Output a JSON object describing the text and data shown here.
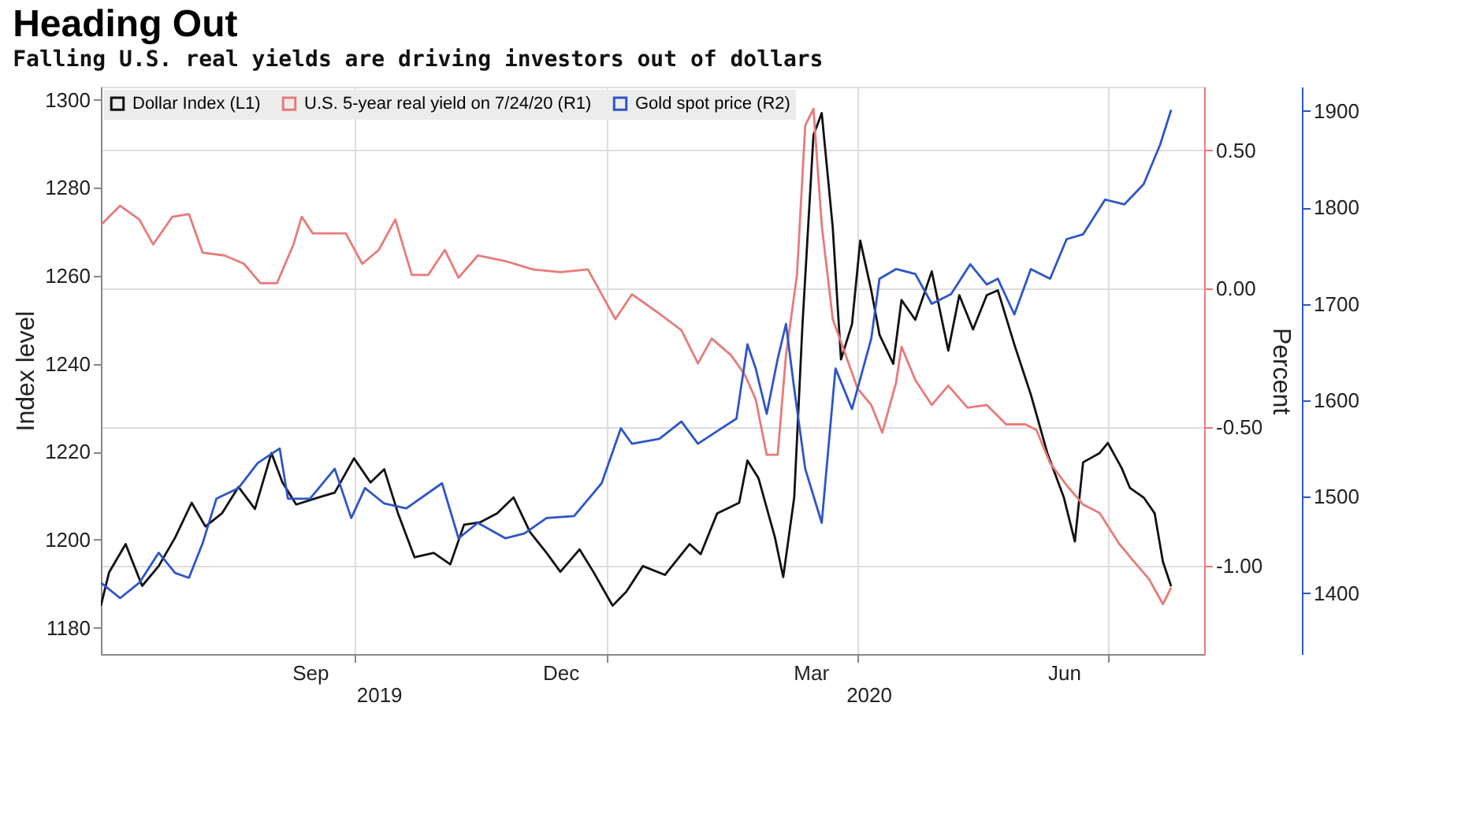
{
  "chart_data": {
    "type": "line",
    "title": "Heading Out",
    "subtitle": "Falling U.S. real yields are driving investors out of dollars",
    "ylabel": "Index level",
    "y2label": "Percent",
    "xlim": [
      "2019-07-01",
      "2020-08-05"
    ],
    "xticks": [
      {
        "value": "2019-09-15",
        "label": "Sep"
      },
      {
        "value": "2019-10-01",
        "label": null
      },
      {
        "value": "2019-12-15",
        "label": "Dec"
      },
      {
        "value": "2020-01-01",
        "label": null
      },
      {
        "value": "2020-03-15",
        "label": "Mar"
      },
      {
        "value": "2020-04-01",
        "label": null
      },
      {
        "value": "2020-06-15",
        "label": "Jun"
      },
      {
        "value": "2020-07-01",
        "label": null
      }
    ],
    "x2lim": [
      "2019-07-01",
      "2020-08-05"
    ],
    "x2ticks": [
      {
        "value": "2019-10-10",
        "label": "2019"
      },
      {
        "value": "2020-04-05",
        "label": "2020"
      }
    ],
    "ylim": [
      1174,
      1303
    ],
    "yticks": [
      1180,
      1200,
      1220,
      1240,
      1260,
      1280,
      1300
    ],
    "y2lim": [
      -1.32,
      0.73
    ],
    "y2ticks": [
      {
        "value": -1,
        "label": "-1.00"
      },
      {
        "value": -0.5,
        "label": "-0.50"
      },
      {
        "value": 0,
        "label": "0.00"
      },
      {
        "value": 0.5,
        "label": "0.50"
      }
    ],
    "y3lim": [
      1337,
      1925
    ],
    "y3ticks": [
      1400,
      1500,
      1600,
      1700,
      1800,
      1900
    ],
    "grid": true,
    "legend": "top left",
    "marker": "none",
    "line_style": "solid",
    "series": [
      {
        "name": "Dollar Index (L1)",
        "color": "#111111",
        "x": [
          "2019-07-01",
          "2019-07-04",
          "2019-07-10",
          "2019-07-16",
          "2019-07-22",
          "2019-07-28",
          "2019-08-03",
          "2019-08-08",
          "2019-08-14",
          "2019-08-20",
          "2019-08-26",
          "2019-09-01",
          "2019-09-05",
          "2019-09-10",
          "2019-09-18",
          "2019-09-24",
          "2019-10-01",
          "2019-10-07",
          "2019-10-12",
          "2019-10-17",
          "2019-10-23",
          "2019-10-30",
          "2019-11-05",
          "2019-11-10",
          "2019-11-16",
          "2019-11-22",
          "2019-11-28",
          "2019-12-04",
          "2019-12-10",
          "2019-12-15",
          "2019-12-22",
          "2019-12-27",
          "2020-01-03",
          "2020-01-08",
          "2020-01-14",
          "2020-01-22",
          "2020-01-31",
          "2020-02-04",
          "2020-02-10",
          "2020-02-18",
          "2020-02-21",
          "2020-02-25",
          "2020-03-02",
          "2020-03-05",
          "2020-03-09",
          "2020-03-12",
          "2020-03-16",
          "2020-03-19",
          "2020-03-23",
          "2020-03-26",
          "2020-03-30",
          "2020-04-02",
          "2020-04-06",
          "2020-04-09",
          "2020-04-14",
          "2020-04-17",
          "2020-04-22",
          "2020-04-28",
          "2020-05-04",
          "2020-05-08",
          "2020-05-13",
          "2020-05-18",
          "2020-05-22",
          "2020-05-28",
          "2020-06-03",
          "2020-06-09",
          "2020-06-15",
          "2020-06-19",
          "2020-06-22",
          "2020-06-28",
          "2020-07-01",
          "2020-07-06",
          "2020-07-09",
          "2020-07-14",
          "2020-07-18",
          "2020-07-21",
          "2020-07-24"
        ],
        "values": [
          1185,
          1192.6,
          1199,
          1189.5,
          1194,
          1200.5,
          1208.4,
          1203,
          1206,
          1212,
          1207,
          1219.7,
          1213,
          1208,
          1209.6,
          1210.7,
          1218.5,
          1213,
          1216,
          1206,
          1196,
          1197,
          1194.4,
          1203.4,
          1204,
          1206,
          1209.6,
          1201.7,
          1197,
          1192.7,
          1197.8,
          1192.7,
          1185,
          1188.2,
          1194,
          1192,
          1199,
          1196.7,
          1206,
          1208.4,
          1218,
          1214,
          1200.5,
          1191.5,
          1209.6,
          1248.9,
          1292,
          1297,
          1271,
          1241,
          1249,
          1268,
          1256.7,
          1246.6,
          1240,
          1254.5,
          1250,
          1261,
          1243,
          1255.6,
          1247.8,
          1255.6,
          1256.7,
          1244.4,
          1233,
          1219.7,
          1209.6,
          1199.6,
          1217.6,
          1219.7,
          1222,
          1216.3,
          1211.8,
          1209.6,
          1206,
          1195,
          1189.4
        ]
      },
      {
        "name": "U.S. 5-year real yield on 7/24/20 (R1)",
        "color": "#e87a7a",
        "axis": "y2",
        "x": [
          "2019-07-01",
          "2019-07-08",
          "2019-07-15",
          "2019-07-20",
          "2019-07-27",
          "2019-08-02",
          "2019-08-07",
          "2019-08-15",
          "2019-08-22",
          "2019-08-28",
          "2019-09-03",
          "2019-09-09",
          "2019-09-12",
          "2019-09-16",
          "2019-09-24",
          "2019-09-28",
          "2019-10-04",
          "2019-10-10",
          "2019-10-16",
          "2019-10-22",
          "2019-10-28",
          "2019-11-03",
          "2019-11-08",
          "2019-11-15",
          "2019-11-25",
          "2019-12-05",
          "2019-12-15",
          "2019-12-25",
          "2020-01-04",
          "2020-01-10",
          "2020-01-20",
          "2020-01-28",
          "2020-02-03",
          "2020-02-08",
          "2020-02-15",
          "2020-02-20",
          "2020-02-24",
          "2020-02-28",
          "2020-03-03",
          "2020-03-06",
          "2020-03-10",
          "2020-03-13",
          "2020-03-16",
          "2020-03-19",
          "2020-03-23",
          "2020-03-27",
          "2020-04-01",
          "2020-04-06",
          "2020-04-10",
          "2020-04-15",
          "2020-04-17",
          "2020-04-22",
          "2020-04-28",
          "2020-05-04",
          "2020-05-11",
          "2020-05-18",
          "2020-05-25",
          "2020-06-01",
          "2020-06-05",
          "2020-06-10",
          "2020-06-16",
          "2020-06-22",
          "2020-06-28",
          "2020-07-05",
          "2020-07-10",
          "2020-07-16",
          "2020-07-21",
          "2020-07-24"
        ],
        "values": [
          0.23,
          0.3,
          0.25,
          0.16,
          0.26,
          0.27,
          0.13,
          0.12,
          0.09,
          0.02,
          0.02,
          0.16,
          0.26,
          0.2,
          0.2,
          0.2,
          0.09,
          0.14,
          0.25,
          0.05,
          0.05,
          0.14,
          0.04,
          0.12,
          0.1,
          0.07,
          0.06,
          0.07,
          -0.11,
          -0.02,
          -0.09,
          -0.15,
          -0.27,
          -0.18,
          -0.24,
          -0.31,
          -0.4,
          -0.6,
          -0.6,
          -0.24,
          0.05,
          0.59,
          0.65,
          0.23,
          -0.11,
          -0.22,
          -0.36,
          -0.42,
          -0.52,
          -0.34,
          -0.21,
          -0.33,
          -0.42,
          -0.35,
          -0.43,
          -0.42,
          -0.49,
          -0.49,
          -0.51,
          -0.63,
          -0.71,
          -0.78,
          -0.81,
          -0.92,
          -0.98,
          -1.05,
          -1.14,
          -1.08
        ]
      },
      {
        "name": "Gold spot price (R2)",
        "color": "#2d55c8",
        "axis": "y3",
        "x": [
          "2019-07-01",
          "2019-07-08",
          "2019-07-15",
          "2019-07-22",
          "2019-07-28",
          "2019-08-02",
          "2019-08-07",
          "2019-08-12",
          "2019-08-20",
          "2019-08-27",
          "2019-09-04",
          "2019-09-07",
          "2019-09-15",
          "2019-09-24",
          "2019-09-30",
          "2019-10-05",
          "2019-10-12",
          "2019-10-20",
          "2019-10-28",
          "2019-11-02",
          "2019-11-08",
          "2019-11-15",
          "2019-11-25",
          "2019-12-02",
          "2019-12-10",
          "2019-12-20",
          "2019-12-30",
          "2020-01-06",
          "2020-01-10",
          "2020-01-20",
          "2020-01-28",
          "2020-02-03",
          "2020-02-10",
          "2020-02-17",
          "2020-02-21",
          "2020-02-24",
          "2020-02-28",
          "2020-03-03",
          "2020-03-06",
          "2020-03-09",
          "2020-03-13",
          "2020-03-19",
          "2020-03-24",
          "2020-03-30",
          "2020-04-06",
          "2020-04-09",
          "2020-04-15",
          "2020-04-22",
          "2020-04-28",
          "2020-05-05",
          "2020-05-12",
          "2020-05-18",
          "2020-05-22",
          "2020-05-28",
          "2020-06-03",
          "2020-06-10",
          "2020-06-16",
          "2020-06-22",
          "2020-06-30",
          "2020-07-07",
          "2020-07-14",
          "2020-07-20",
          "2020-07-24"
        ],
        "values": [
          1411,
          1395,
          1411,
          1442,
          1421,
          1416,
          1452,
          1498,
          1509,
          1535,
          1550,
          1498,
          1498,
          1529,
          1478,
          1509,
          1493,
          1488,
          1504,
          1514,
          1457,
          1473,
          1457,
          1462,
          1478,
          1480,
          1514,
          1571,
          1555,
          1560,
          1578,
          1555,
          1568,
          1581,
          1658,
          1633,
          1586,
          1643,
          1679,
          1612,
          1529,
          1473,
          1633,
          1591,
          1664,
          1726,
          1736,
          1731,
          1700,
          1710,
          1741,
          1720,
          1726,
          1689,
          1736,
          1726,
          1767,
          1772,
          1808,
          1803,
          1824,
          1865,
          1901
        ]
      }
    ]
  }
}
